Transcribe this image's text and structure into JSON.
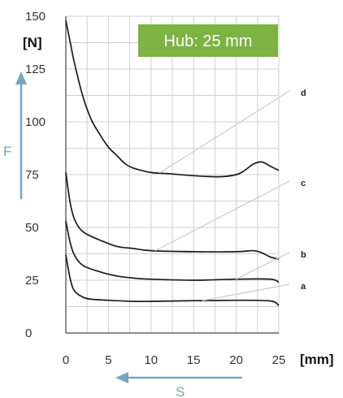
{
  "chart_data": {
    "type": "line",
    "title": "",
    "ylabel_unit": "[N]",
    "xlabel_unit": "[mm]",
    "y_arrow_label": "F",
    "x_arrow_label": "S",
    "annotation": "Hub: 25 mm",
    "xlim": [
      0,
      25
    ],
    "ylim": [
      0,
      150
    ],
    "x_ticks": [
      "0",
      "5",
      "10",
      "15",
      "20",
      "25"
    ],
    "y_ticks": [
      "0",
      "25",
      "50",
      "75",
      "100",
      "125",
      "150"
    ],
    "grid": true,
    "colors": {
      "badge": "#7cb342",
      "arrow": "#7aa3bf",
      "curve": "#1a1a1a"
    },
    "series": [
      {
        "name": "a",
        "x": [
          0,
          0.5,
          1,
          2,
          3,
          5,
          8,
          10,
          15,
          20,
          24,
          25
        ],
        "y": [
          37,
          26,
          20,
          17,
          16,
          15.5,
          15,
          15,
          15.3,
          15.5,
          15.2,
          13
        ]
      },
      {
        "name": "b",
        "x": [
          0,
          0.5,
          1,
          2,
          4,
          6,
          8,
          10,
          15,
          20,
          24,
          25
        ],
        "y": [
          53,
          43,
          37,
          32,
          29,
          27,
          26,
          25.5,
          25,
          25.5,
          25.5,
          24
        ]
      },
      {
        "name": "c",
        "x": [
          0,
          0.5,
          1,
          2,
          4,
          6,
          8,
          10,
          15,
          20,
          22,
          23,
          24,
          25
        ],
        "y": [
          76,
          62,
          54,
          48,
          44,
          41,
          40,
          39,
          38.5,
          38.5,
          39,
          38,
          36,
          35
        ]
      },
      {
        "name": "d",
        "x": [
          0,
          0.5,
          1,
          2,
          3,
          4,
          5,
          6,
          7,
          8,
          10,
          12,
          15,
          18,
          20,
          21,
          22,
          23,
          24,
          25
        ],
        "y": [
          148,
          138,
          128,
          112,
          101,
          94,
          88,
          84,
          80,
          78,
          76,
          75.5,
          74.5,
          74,
          75,
          77,
          80,
          81,
          79,
          77
        ]
      }
    ]
  }
}
